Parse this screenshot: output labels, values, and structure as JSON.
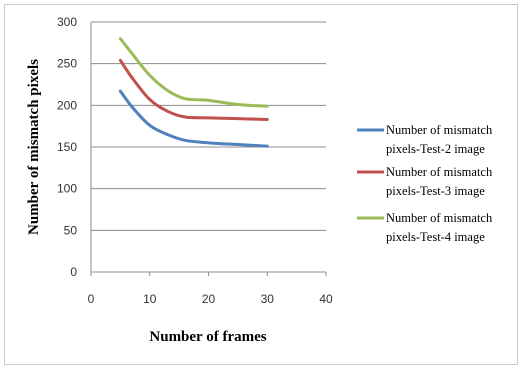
{
  "chart_data": {
    "type": "line",
    "title": "",
    "xlabel": "Number of frames",
    "ylabel": "Number of mismatch pixels",
    "xlim": [
      0,
      40
    ],
    "ylim": [
      0,
      300
    ],
    "xticks": [
      0,
      10,
      20,
      30,
      40
    ],
    "yticks": [
      0,
      50,
      100,
      150,
      200,
      250,
      300
    ],
    "grid": "horizontal",
    "legend_position": "right",
    "x": [
      5,
      7,
      10,
      13,
      16,
      20,
      25,
      30
    ],
    "series": [
      {
        "name": "Number of mismatch pixels-Test-2 image",
        "color": "#4f81bd",
        "legend_lines": [
          "Number of mismatch",
          "pixels-Test-2 image"
        ],
        "values": [
          217,
          198,
          176,
          165,
          158,
          155,
          153,
          151
        ]
      },
      {
        "name": "Number of mismatch pixels-Test-3 image",
        "color": "#c0504d",
        "legend_lines": [
          "Number of mismatch",
          "pixels-Test-3 image"
        ],
        "values": [
          254,
          233,
          207,
          193,
          186,
          185,
          184,
          183
        ]
      },
      {
        "name": "Number of mismatch pixels-Test-4 image",
        "color": "#9bbb59",
        "legend_lines": [
          "Number of mismatch",
          "pixels-Test-4 image"
        ],
        "values": [
          280,
          262,
          236,
          218,
          208,
          206,
          201,
          199
        ]
      }
    ]
  }
}
